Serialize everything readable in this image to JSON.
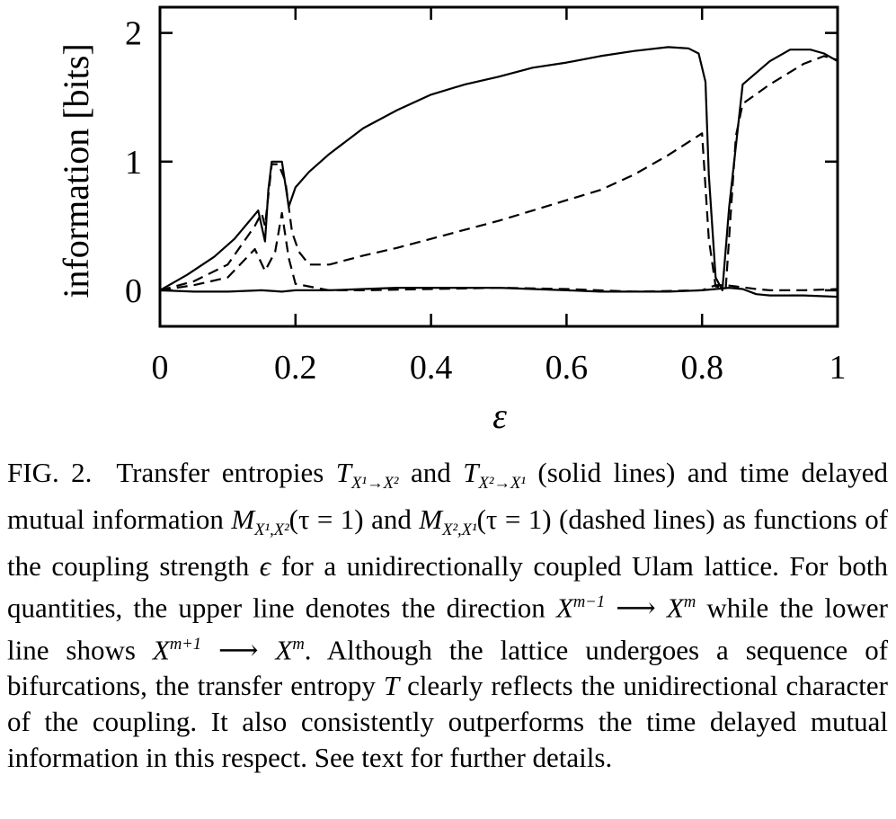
{
  "chart_data": {
    "type": "line",
    "xlabel": "ε",
    "ylabel": "information [bits]",
    "xlim": [
      0,
      1
    ],
    "ylim": [
      -0.28,
      2.2
    ],
    "x_ticks": [
      "0",
      "0.2",
      "0.4",
      "0.6",
      "0.8",
      "1"
    ],
    "y_ticks": [
      "0",
      "1",
      "2"
    ],
    "grid": false,
    "series": [
      {
        "style": "solid",
        "points": [
          [
            0,
            0
          ],
          [
            0.04,
            0.12
          ],
          [
            0.08,
            0.26
          ],
          [
            0.11,
            0.4
          ],
          [
            0.145,
            0.62
          ],
          [
            0.155,
            0.38
          ],
          [
            0.16,
            0.78
          ],
          [
            0.165,
            1.0
          ],
          [
            0.18,
            1.0
          ],
          [
            0.19,
            0.65
          ],
          [
            0.2,
            0.8
          ],
          [
            0.22,
            0.92
          ],
          [
            0.25,
            1.06
          ],
          [
            0.3,
            1.26
          ],
          [
            0.35,
            1.4
          ],
          [
            0.4,
            1.52
          ],
          [
            0.45,
            1.6
          ],
          [
            0.5,
            1.66
          ],
          [
            0.55,
            1.73
          ],
          [
            0.6,
            1.77
          ],
          [
            0.65,
            1.82
          ],
          [
            0.7,
            1.86
          ],
          [
            0.75,
            1.89
          ],
          [
            0.78,
            1.88
          ],
          [
            0.795,
            1.84
          ],
          [
            0.805,
            1.62
          ],
          [
            0.81,
            0.9
          ],
          [
            0.82,
            0.1
          ],
          [
            0.83,
            0.0
          ],
          [
            0.84,
            0.65
          ],
          [
            0.86,
            1.6
          ],
          [
            0.9,
            1.78
          ],
          [
            0.93,
            1.87
          ],
          [
            0.96,
            1.87
          ],
          [
            0.98,
            1.84
          ],
          [
            1.0,
            1.78
          ]
        ]
      },
      {
        "style": "solid",
        "points": [
          [
            0,
            0
          ],
          [
            0.05,
            -0.01
          ],
          [
            0.1,
            -0.01
          ],
          [
            0.15,
            0.0
          ],
          [
            0.18,
            -0.01
          ],
          [
            0.2,
            0.0
          ],
          [
            0.25,
            0.0
          ],
          [
            0.3,
            0.01
          ],
          [
            0.35,
            0.02
          ],
          [
            0.4,
            0.02
          ],
          [
            0.45,
            0.02
          ],
          [
            0.5,
            0.02
          ],
          [
            0.55,
            0.01
          ],
          [
            0.6,
            0.0
          ],
          [
            0.65,
            -0.01
          ],
          [
            0.7,
            -0.01
          ],
          [
            0.75,
            -0.01
          ],
          [
            0.8,
            0.0
          ],
          [
            0.82,
            0.01
          ],
          [
            0.84,
            0.02
          ],
          [
            0.86,
            0.01
          ],
          [
            0.88,
            -0.03
          ],
          [
            0.9,
            -0.04
          ],
          [
            0.95,
            -0.04
          ],
          [
            1.0,
            -0.05
          ]
        ]
      },
      {
        "style": "dashed",
        "points": [
          [
            0,
            0
          ],
          [
            0.05,
            0.07
          ],
          [
            0.1,
            0.2
          ],
          [
            0.14,
            0.5
          ],
          [
            0.15,
            0.6
          ],
          [
            0.155,
            0.5
          ],
          [
            0.165,
            0.98
          ],
          [
            0.175,
            0.98
          ],
          [
            0.185,
            0.85
          ],
          [
            0.195,
            0.45
          ],
          [
            0.205,
            0.3
          ],
          [
            0.22,
            0.2
          ],
          [
            0.25,
            0.2
          ],
          [
            0.3,
            0.27
          ],
          [
            0.35,
            0.33
          ],
          [
            0.4,
            0.4
          ],
          [
            0.45,
            0.47
          ],
          [
            0.5,
            0.54
          ],
          [
            0.55,
            0.62
          ],
          [
            0.6,
            0.7
          ],
          [
            0.65,
            0.78
          ],
          [
            0.7,
            0.9
          ],
          [
            0.75,
            1.05
          ],
          [
            0.8,
            1.22
          ],
          [
            0.81,
            0.4
          ],
          [
            0.82,
            0.03
          ],
          [
            0.835,
            0.02
          ],
          [
            0.85,
            1.2
          ],
          [
            0.86,
            1.45
          ],
          [
            0.9,
            1.6
          ],
          [
            0.95,
            1.76
          ],
          [
            0.98,
            1.82
          ],
          [
            1.0,
            1.79
          ]
        ]
      },
      {
        "style": "dashed",
        "points": [
          [
            0,
            0
          ],
          [
            0.05,
            0.04
          ],
          [
            0.1,
            0.1
          ],
          [
            0.14,
            0.32
          ],
          [
            0.155,
            0.15
          ],
          [
            0.17,
            0.3
          ],
          [
            0.18,
            0.6
          ],
          [
            0.19,
            0.25
          ],
          [
            0.2,
            0.05
          ],
          [
            0.25,
            0.0
          ],
          [
            0.3,
            0.0
          ],
          [
            0.4,
            0.01
          ],
          [
            0.5,
            0.02
          ],
          [
            0.6,
            0.01
          ],
          [
            0.7,
            -0.01
          ],
          [
            0.8,
            0.0
          ],
          [
            0.82,
            0.04
          ],
          [
            0.835,
            0.04
          ],
          [
            0.85,
            0.03
          ],
          [
            0.88,
            0.01
          ],
          [
            0.9,
            0.0
          ],
          [
            0.95,
            0.0
          ],
          [
            1.0,
            0.01
          ]
        ]
      }
    ]
  },
  "caption": {
    "label": "FIG. 2.",
    "p1": "Transfer entropies",
    "t_sym": "T",
    "t12_sub": "X¹→X²",
    "p2": "and",
    "t21_sub": "X²→X¹",
    "p3": "(solid lines) and time delayed mutual information",
    "m_sym": "M",
    "m12_sub": "X¹,X²",
    "tau_arg": "(τ = 1)",
    "p4": "and",
    "m21_sub": "X²,X¹",
    "p5": "(dashed lines) as functions of the coupling strength",
    "eps": "ϵ",
    "p6": "for a unidirectionally coupled Ulam lattice. For both quantities, the upper line denotes the direction",
    "x_sym": "X",
    "sup_m_minus": "m−1",
    "arrow": "⟶",
    "sup_m": "m",
    "p7": "while the lower line shows",
    "sup_m_plus": "m+1",
    "p8": ". Although the lattice undergoes a sequence of bifurcations, the transfer entropy",
    "p9": "clearly reflects the unidirectional character of the coupling. It also consistently outperforms the time delayed mutual information in this respect. See text for further details."
  }
}
